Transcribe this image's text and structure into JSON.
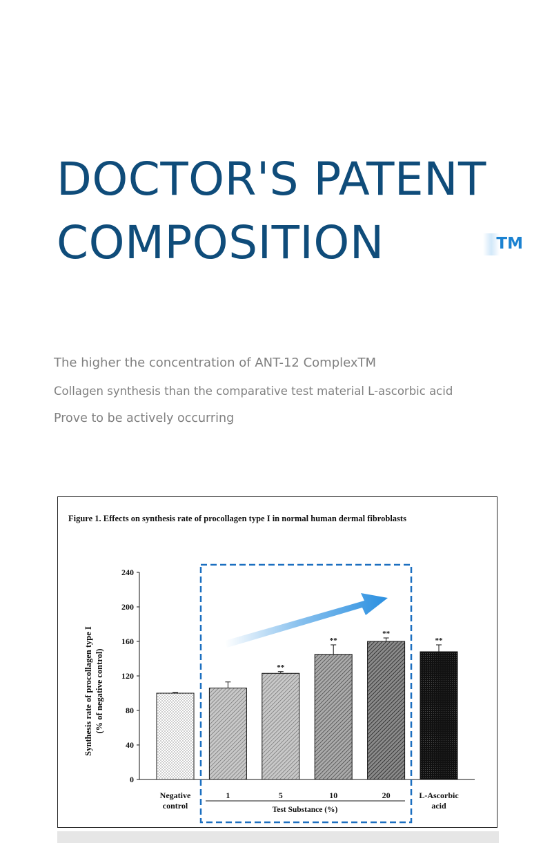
{
  "headline": {
    "line1": "DOCTOR'S PATENT",
    "line2": "COMPOSITION",
    "tm": "TM"
  },
  "description": {
    "line1": "The higher the concentration of ANT-12 ComplexTM",
    "line2": "Collagen synthesis than the comparative test material L-ascorbic acid",
    "line3": "Prove to be actively occurring"
  },
  "colors": {
    "heading": "#0f4c7a",
    "tm": "#1b82d1",
    "highlight_box": "#1b6fc0",
    "arrow": "#2a8fe0"
  },
  "chart_data": {
    "type": "bar",
    "title": "Figure 1. Effects on synthesis rate of procollagen type I in normal human dermal fibroblasts",
    "ylabel_line1": "Synthesis rate of procollagen type I",
    "ylabel_line2": "(% of negative control)",
    "ylim": [
      0,
      240
    ],
    "yticks": [
      0,
      40,
      80,
      120,
      160,
      200,
      240
    ],
    "categories": [
      {
        "label_lines": [
          "Negative",
          "control"
        ],
        "value": 100,
        "error": 0.8,
        "sig": "",
        "fill": "dots"
      },
      {
        "label_lines": [
          "1"
        ],
        "value": 106,
        "error": 7,
        "sig": "",
        "fill": "hatch-light"
      },
      {
        "label_lines": [
          "5"
        ],
        "value": 123,
        "error": 2,
        "sig": "**",
        "fill": "hatch-light"
      },
      {
        "label_lines": [
          "10"
        ],
        "value": 145,
        "error": 11,
        "sig": "**",
        "fill": "hatch-mid"
      },
      {
        "label_lines": [
          "20"
        ],
        "value": 160,
        "error": 4,
        "sig": "**",
        "fill": "hatch-dark"
      },
      {
        "label_lines": [
          "L-Ascorbic",
          "acid"
        ],
        "value": 148,
        "error": 8,
        "sig": "**",
        "fill": "dark"
      }
    ],
    "group_label": "Test Substance (%)",
    "grid": false,
    "highlight": "Test Substance (%)"
  }
}
